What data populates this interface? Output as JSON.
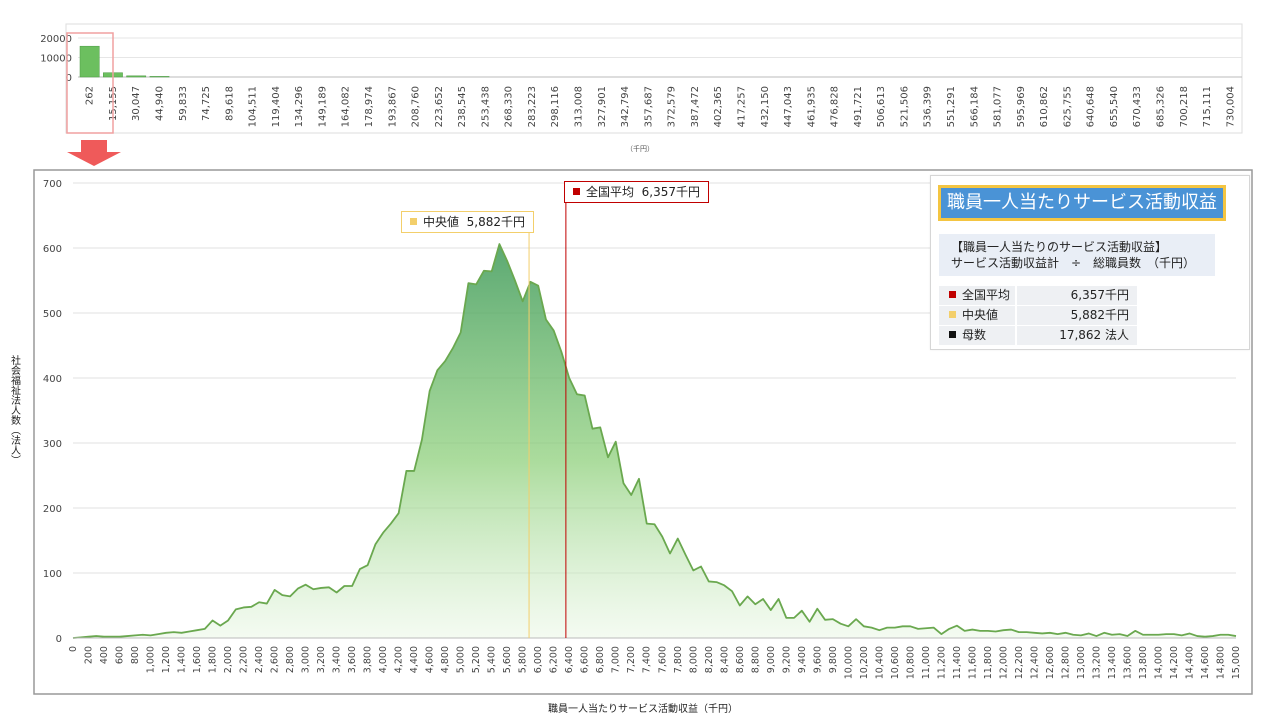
{
  "colors": {
    "accent": "#5aa84a",
    "mean": "#c00000",
    "median": "#f3cf6b",
    "count": "#111111"
  },
  "overview_chart": {
    "type": "bar",
    "y_ticks": [
      "20000",
      "10000",
      "0"
    ],
    "x_ticks": [
      "262",
      "15,155",
      "30,047",
      "44,940",
      "59,833",
      "74,725",
      "89,618",
      "104,511",
      "119,404",
      "134,296",
      "149,189",
      "164,082",
      "178,974",
      "193,867",
      "208,760",
      "223,652",
      "238,545",
      "253,438",
      "268,330",
      "283,223",
      "298,116",
      "313,008",
      "327,901",
      "342,794",
      "357,687",
      "372,579",
      "387,472",
      "402,365",
      "417,257",
      "432,150",
      "447,043",
      "461,935",
      "476,828",
      "491,721",
      "506,613",
      "521,506",
      "536,399",
      "551,291",
      "566,184",
      "581,077",
      "595,969",
      "610,862",
      "625,755",
      "640,648",
      "655,540",
      "670,433",
      "685,326",
      "700,218",
      "715,111",
      "730,004"
    ],
    "xlabel": "（千円）",
    "values": [
      15800,
      2200,
      600,
      300,
      200,
      150,
      120,
      100,
      90,
      80,
      70,
      70,
      60,
      60,
      60,
      50,
      50,
      50,
      50,
      50,
      50,
      40,
      40,
      40,
      40,
      40,
      40,
      30,
      30,
      30,
      30,
      30,
      30,
      30,
      30,
      30,
      30,
      30,
      30,
      30,
      30,
      30,
      30,
      30,
      30,
      30,
      30,
      30,
      30,
      30
    ],
    "ylim": [
      0,
      20000
    ]
  },
  "chart_data": {
    "type": "area",
    "xlabel": "職員一人当たりサービス活動収益（千円）",
    "ylabel": "社会福祉法人数（法人）",
    "ylim": [
      0,
      700
    ],
    "xlim": [
      0,
      15000
    ],
    "y_ticks": [
      0,
      100,
      200,
      300,
      400,
      500,
      600,
      700
    ],
    "x_tick_step": 200,
    "x": [
      0,
      100,
      200,
      300,
      400,
      500,
      600,
      700,
      800,
      900,
      1000,
      1100,
      1200,
      1300,
      1400,
      1500,
      1600,
      1700,
      1800,
      1900,
      2000,
      2100,
      2200,
      2300,
      2400,
      2500,
      2600,
      2700,
      2800,
      2900,
      3000,
      3100,
      3200,
      3300,
      3400,
      3500,
      3600,
      3700,
      3800,
      3900,
      4000,
      4100,
      4200,
      4300,
      4400,
      4500,
      4600,
      4700,
      4800,
      4900,
      5000,
      5100,
      5200,
      5300,
      5400,
      5500,
      5600,
      5700,
      5800,
      5900,
      6000,
      6100,
      6200,
      6300,
      6400,
      6500,
      6600,
      6700,
      6800,
      6900,
      7000,
      7100,
      7200,
      7300,
      7400,
      7500,
      7600,
      7700,
      7800,
      7900,
      8000,
      8100,
      8200,
      8300,
      8400,
      8500,
      8600,
      8700,
      8800,
      8900,
      9000,
      9100,
      9200,
      9300,
      9400,
      9500,
      9600,
      9700,
      9800,
      9900,
      10000,
      10100,
      10200,
      10300,
      10400,
      10500,
      10600,
      10700,
      10800,
      10900,
      11000,
      11100,
      11200,
      11300,
      11400,
      11500,
      11600,
      11700,
      11800,
      11900,
      12000,
      12100,
      12200,
      12300,
      12400,
      12500,
      12600,
      12700,
      12800,
      12900,
      13000,
      13100,
      13200,
      13300,
      13400,
      13500,
      13600,
      13700,
      13800,
      13900,
      14000,
      14100,
      14200,
      14300,
      14400,
      14500,
      14600,
      14700,
      14800,
      14900,
      15000
    ],
    "y": [
      0,
      1,
      2,
      3,
      2,
      2,
      2,
      3,
      4,
      5,
      4,
      6,
      8,
      9,
      8,
      10,
      12,
      14,
      27,
      19,
      27,
      44,
      47,
      48,
      55,
      53,
      74,
      66,
      64,
      76,
      82,
      75,
      77,
      78,
      70,
      80,
      80,
      106,
      112,
      144,
      162,
      176,
      192,
      257,
      257,
      305,
      380,
      412,
      426,
      446,
      470,
      546,
      544,
      565,
      564,
      606,
      580,
      550,
      518,
      548,
      542,
      490,
      473,
      440,
      400,
      375,
      373,
      322,
      324,
      278,
      302,
      238,
      220,
      245,
      176,
      175,
      156,
      130,
      153,
      128,
      104,
      110,
      87,
      86,
      81,
      72,
      50,
      64,
      52,
      60,
      43,
      60,
      31,
      31,
      42,
      25,
      45,
      28,
      29,
      22,
      18,
      29,
      18,
      16,
      12,
      16,
      16,
      18,
      18,
      14,
      15,
      16,
      6,
      14,
      19,
      11,
      13,
      11,
      11,
      10,
      12,
      13,
      9,
      9,
      8,
      7,
      8,
      6,
      8,
      5,
      4,
      7,
      3,
      8,
      5,
      6,
      3,
      11,
      5,
      5,
      5,
      6,
      6,
      4,
      7,
      3,
      2,
      3,
      5,
      5,
      3
    ],
    "mean": {
      "value": 6357,
      "label": "全国平均",
      "value_text": "6,357千円"
    },
    "median": {
      "value": 5882,
      "label": "中央値",
      "value_text": "5,882千円"
    }
  },
  "legend": {
    "title": "職員一人当たりサービス活動収益",
    "formula_line1": "【職員一人当たりのサービス活動収益】",
    "formula_line2": "サービス活動収益計　÷　総職員数　（千円）",
    "rows": [
      {
        "label": "全国平均",
        "value": "6,357千円"
      },
      {
        "label": "中央値",
        "value": "5,882千円"
      },
      {
        "label": "母数",
        "value": "17,862 法人"
      }
    ]
  }
}
